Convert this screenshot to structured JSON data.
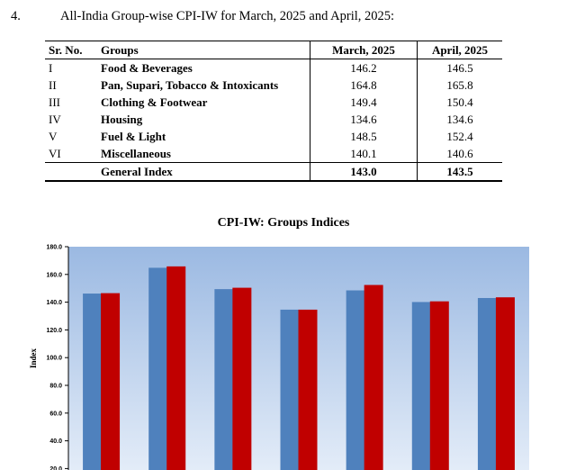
{
  "heading": {
    "number": "4.",
    "text": "All-India Group-wise CPI-IW for March, 2025 and April, 2025:"
  },
  "table": {
    "headers": {
      "sr": "Sr. No.",
      "group": "Groups",
      "march": "March, 2025",
      "april": "April, 2025"
    },
    "rows": [
      {
        "sr": "I",
        "group": "Food & Beverages",
        "march": "146.2",
        "april": "146.5"
      },
      {
        "sr": "II",
        "group": "Pan, Supari, Tobacco & Intoxicants",
        "march": "164.8",
        "april": "165.8"
      },
      {
        "sr": "III",
        "group": "Clothing & Footwear",
        "march": "149.4",
        "april": "150.4"
      },
      {
        "sr": "IV",
        "group": "Housing",
        "march": "134.6",
        "april": "134.6"
      },
      {
        "sr": "V",
        "group": "Fuel & Light",
        "march": "148.5",
        "april": "152.4"
      },
      {
        "sr": "VI",
        "group": "Miscellaneous",
        "march": "140.1",
        "april": "140.6"
      }
    ],
    "total": {
      "group": "General Index",
      "march": "143.0",
      "april": "143.5"
    }
  },
  "chart_data": {
    "type": "bar",
    "title": "CPI-IW: Groups Indices",
    "ylabel": "Index",
    "ylim": [
      0,
      180
    ],
    "yticks": [
      "180.0",
      "160.0",
      "140.0",
      "120.0",
      "100.0",
      "80.0",
      "60.0",
      "40.0",
      "20.0"
    ],
    "categories": [
      "",
      "",
      "",
      "",
      "",
      "",
      ""
    ],
    "series": [
      {
        "values": [
          146.2,
          164.8,
          149.4,
          134.6,
          148.5,
          140.1,
          143.0
        ],
        "color": "#4f81bd"
      },
      {
        "values": [
          146.5,
          165.8,
          150.4,
          134.6,
          152.4,
          140.6,
          143.5
        ],
        "color": "#c00000"
      }
    ],
    "grid": false,
    "background_gradient": [
      "#9bb9e2",
      "#e3ecf8"
    ]
  }
}
